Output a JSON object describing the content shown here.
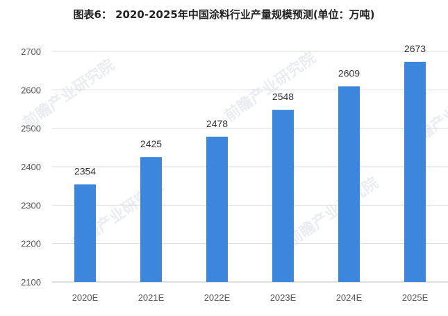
{
  "title": "图表6： 2020-2025年中国涂料行业产量规模预测(单位：万吨)",
  "watermark": "前瞻产业研究院",
  "colors": {
    "bar": "#3d86de",
    "grid": "#d9d9d9",
    "axis": "#bfbfbf"
  },
  "chart_data": {
    "type": "bar",
    "categories": [
      "2020E",
      "2021E",
      "2022E",
      "2023E",
      "2024E",
      "2025E"
    ],
    "values": [
      2354,
      2425,
      2478,
      2548,
      2609,
      2673
    ],
    "ylim": [
      2100,
      2700
    ],
    "yticks": [
      2100,
      2200,
      2300,
      2400,
      2500,
      2600,
      2700
    ],
    "grid": true,
    "legend": "none",
    "xlabel": "",
    "ylabel": ""
  }
}
